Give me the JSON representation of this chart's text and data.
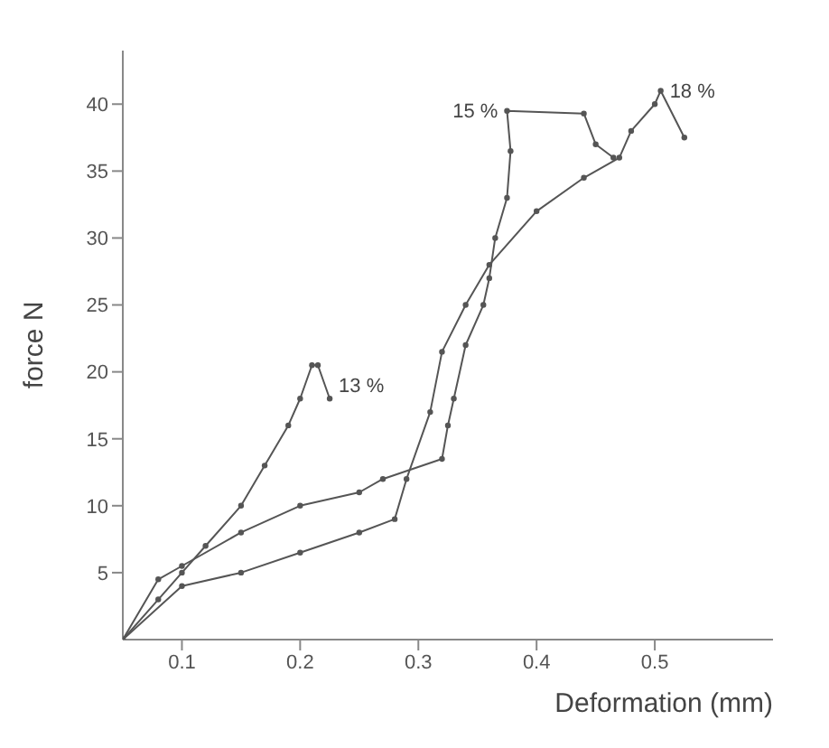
{
  "chart_data": {
    "type": "line",
    "xlabel": "Deformation (mm)",
    "ylabel": "force N",
    "xlim": [
      0.05,
      0.6
    ],
    "ylim": [
      0,
      44
    ],
    "xticks": [
      0.1,
      0.2,
      0.3,
      0.4,
      0.5
    ],
    "yticks": [
      5,
      10,
      15,
      20,
      25,
      30,
      35,
      40
    ],
    "marker": "circle",
    "line_style": "solid",
    "series": [
      {
        "color": "#555555",
        "x": [
          0.05,
          0.08,
          0.1,
          0.12,
          0.15,
          0.17,
          0.19,
          0.2,
          0.21,
          0.215,
          0.225
        ],
        "values": [
          0,
          3,
          5,
          7,
          10,
          13,
          16,
          18,
          20.5,
          20.5,
          18
        ]
      },
      {
        "color": "#555555",
        "x": [
          0.05,
          0.08,
          0.1,
          0.15,
          0.2,
          0.25,
          0.27,
          0.32,
          0.325,
          0.33,
          0.34,
          0.355,
          0.36,
          0.365,
          0.375,
          0.378,
          0.375,
          0.44,
          0.45,
          0.465
        ],
        "values": [
          0,
          4.5,
          5.5,
          8,
          10,
          11,
          12,
          13.5,
          16,
          18,
          22,
          25,
          27,
          30,
          33,
          36.5,
          39.5,
          39.3,
          37,
          36
        ]
      },
      {
        "color": "#555555",
        "x": [
          0.05,
          0.1,
          0.15,
          0.2,
          0.25,
          0.28,
          0.29,
          0.31,
          0.32,
          0.34,
          0.36,
          0.4,
          0.44,
          0.47,
          0.48,
          0.5,
          0.505,
          0.525
        ],
        "values": [
          0,
          4,
          5,
          6.5,
          8,
          9,
          12,
          17,
          21.5,
          25,
          28,
          32,
          34.5,
          36,
          38,
          40,
          41,
          37.5
        ]
      }
    ],
    "annotations": [
      {
        "text": "13 %",
        "x": 0.225,
        "y": 19
      },
      {
        "text": "15 %",
        "x": 0.375,
        "y": 39.5
      },
      {
        "text": "18 %",
        "x": 0.505,
        "y": 41
      }
    ]
  }
}
